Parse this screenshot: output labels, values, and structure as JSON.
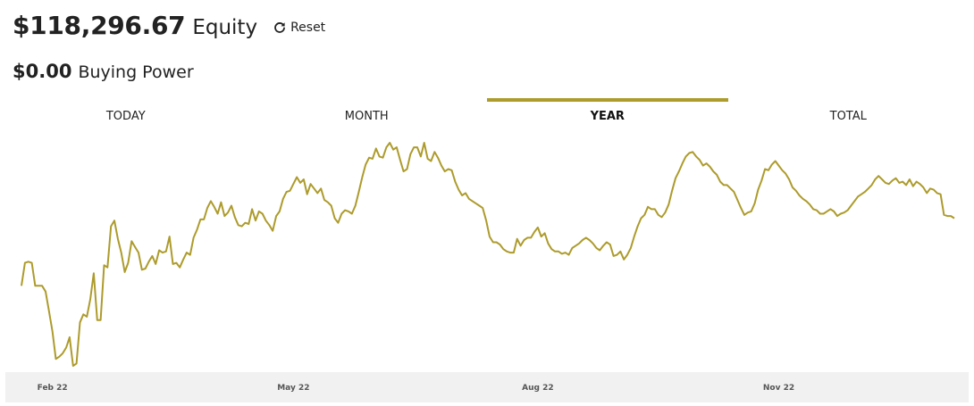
{
  "header": {
    "equity_value": "$118,296.67",
    "equity_label": "Equity",
    "reset_label": "Reset",
    "buying_power_value": "$0.00",
    "buying_power_label": "Buying Power"
  },
  "tabs": [
    {
      "label": "TODAY",
      "active": false
    },
    {
      "label": "MONTH",
      "active": false
    },
    {
      "label": "YEAR",
      "active": true
    },
    {
      "label": "TOTAL",
      "active": false
    }
  ],
  "icons": {
    "reset": "reload-icon"
  },
  "colors": {
    "accent": "#ad9b2c",
    "axis_bg": "#f1f1f1"
  },
  "chart_data": {
    "type": "line",
    "title": "",
    "xlabel": "",
    "ylabel": "",
    "x_tick_labels": [
      "Feb 22",
      "May 22",
      "Aug 22",
      "Nov 22"
    ],
    "x_tick_index": [
      9,
      79,
      150,
      220
    ],
    "grid": false,
    "legend": "none",
    "ylim": [
      101.3,
      120.8
    ],
    "series": [
      {
        "values": [
          108.3,
          110.3,
          110.4,
          110.3,
          108.3,
          108.3,
          108.3,
          107.8,
          106.1,
          104.3,
          101.9,
          102.1,
          102.4,
          102.9,
          103.8,
          101.3,
          101.5,
          105.1,
          105.8,
          105.6,
          107.1,
          109.4,
          105.3,
          105.3,
          110.1,
          109.9,
          113.5,
          114.0,
          112.4,
          111.2,
          109.5,
          110.3,
          112.2,
          111.7,
          111.2,
          109.7,
          109.8,
          110.4,
          110.9,
          110.2,
          111.4,
          111.2,
          111.3,
          112.6,
          110.2,
          110.3,
          109.9,
          110.6,
          111.2,
          111.0,
          112.5,
          113.2,
          114.1,
          114.1,
          115.1,
          115.7,
          115.2,
          114.6,
          115.6,
          114.4,
          114.7,
          115.3,
          114.3,
          113.6,
          113.5,
          113.8,
          113.7,
          115.0,
          114.0,
          114.8,
          114.6,
          114.0,
          113.6,
          113.1,
          114.4,
          114.8,
          115.9,
          116.5,
          116.6,
          117.2,
          117.8,
          117.3,
          117.6,
          116.3,
          117.2,
          116.8,
          116.4,
          116.8,
          115.8,
          115.6,
          115.3,
          114.2,
          113.8,
          114.6,
          114.9,
          114.8,
          114.6,
          115.3,
          116.5,
          117.8,
          118.9,
          119.5,
          119.4,
          120.3,
          119.6,
          119.5,
          120.4,
          120.8,
          120.2,
          120.4,
          119.3,
          118.3,
          118.5,
          119.8,
          120.4,
          120.4,
          119.6,
          120.8,
          119.4,
          119.2,
          120.0,
          119.5,
          118.8,
          118.3,
          118.5,
          118.4,
          117.4,
          116.7,
          116.2,
          116.4,
          115.9,
          115.7,
          115.5,
          115.3,
          115.1,
          114.0,
          112.6,
          112.1,
          112.1,
          111.9,
          111.5,
          111.3,
          111.2,
          111.2,
          112.4,
          111.8,
          112.3,
          112.5,
          112.5,
          113.0,
          113.4,
          112.6,
          112.9,
          112.0,
          111.5,
          111.3,
          111.3,
          111.1,
          111.2,
          111.0,
          111.6,
          111.8,
          112.0,
          112.3,
          112.5,
          112.3,
          112.0,
          111.6,
          111.4,
          111.8,
          112.1,
          111.9,
          110.9,
          111.0,
          111.3,
          110.6,
          111.0,
          111.6,
          112.6,
          113.5,
          114.2,
          114.5,
          115.2,
          115.0,
          115.0,
          114.5,
          114.3,
          114.7,
          115.4,
          116.6,
          117.7,
          118.3,
          119.0,
          119.6,
          119.9,
          120.0,
          119.6,
          119.3,
          118.8,
          119.0,
          118.7,
          118.3,
          118.0,
          117.4,
          117.1,
          117.1,
          116.8,
          116.5,
          115.8,
          115.1,
          114.5,
          114.7,
          114.8,
          115.5,
          116.7,
          117.5,
          118.5,
          118.4,
          118.9,
          119.2,
          118.8,
          118.4,
          118.1,
          117.6,
          116.9,
          116.6,
          116.2,
          115.9,
          115.7,
          115.4,
          115.0,
          114.9,
          114.6,
          114.6,
          114.8,
          115.0,
          114.8,
          114.4,
          114.6,
          114.7,
          114.9,
          115.3,
          115.7,
          116.1,
          116.3,
          116.5,
          116.8,
          117.1,
          117.6,
          117.9,
          117.6,
          117.3,
          117.2,
          117.5,
          117.7,
          117.3,
          117.4,
          117.1,
          117.6,
          117.0,
          117.4,
          117.2,
          116.9,
          116.4,
          116.8,
          116.7,
          116.4,
          116.3,
          114.5,
          114.4,
          114.4,
          114.2
        ]
      }
    ]
  }
}
